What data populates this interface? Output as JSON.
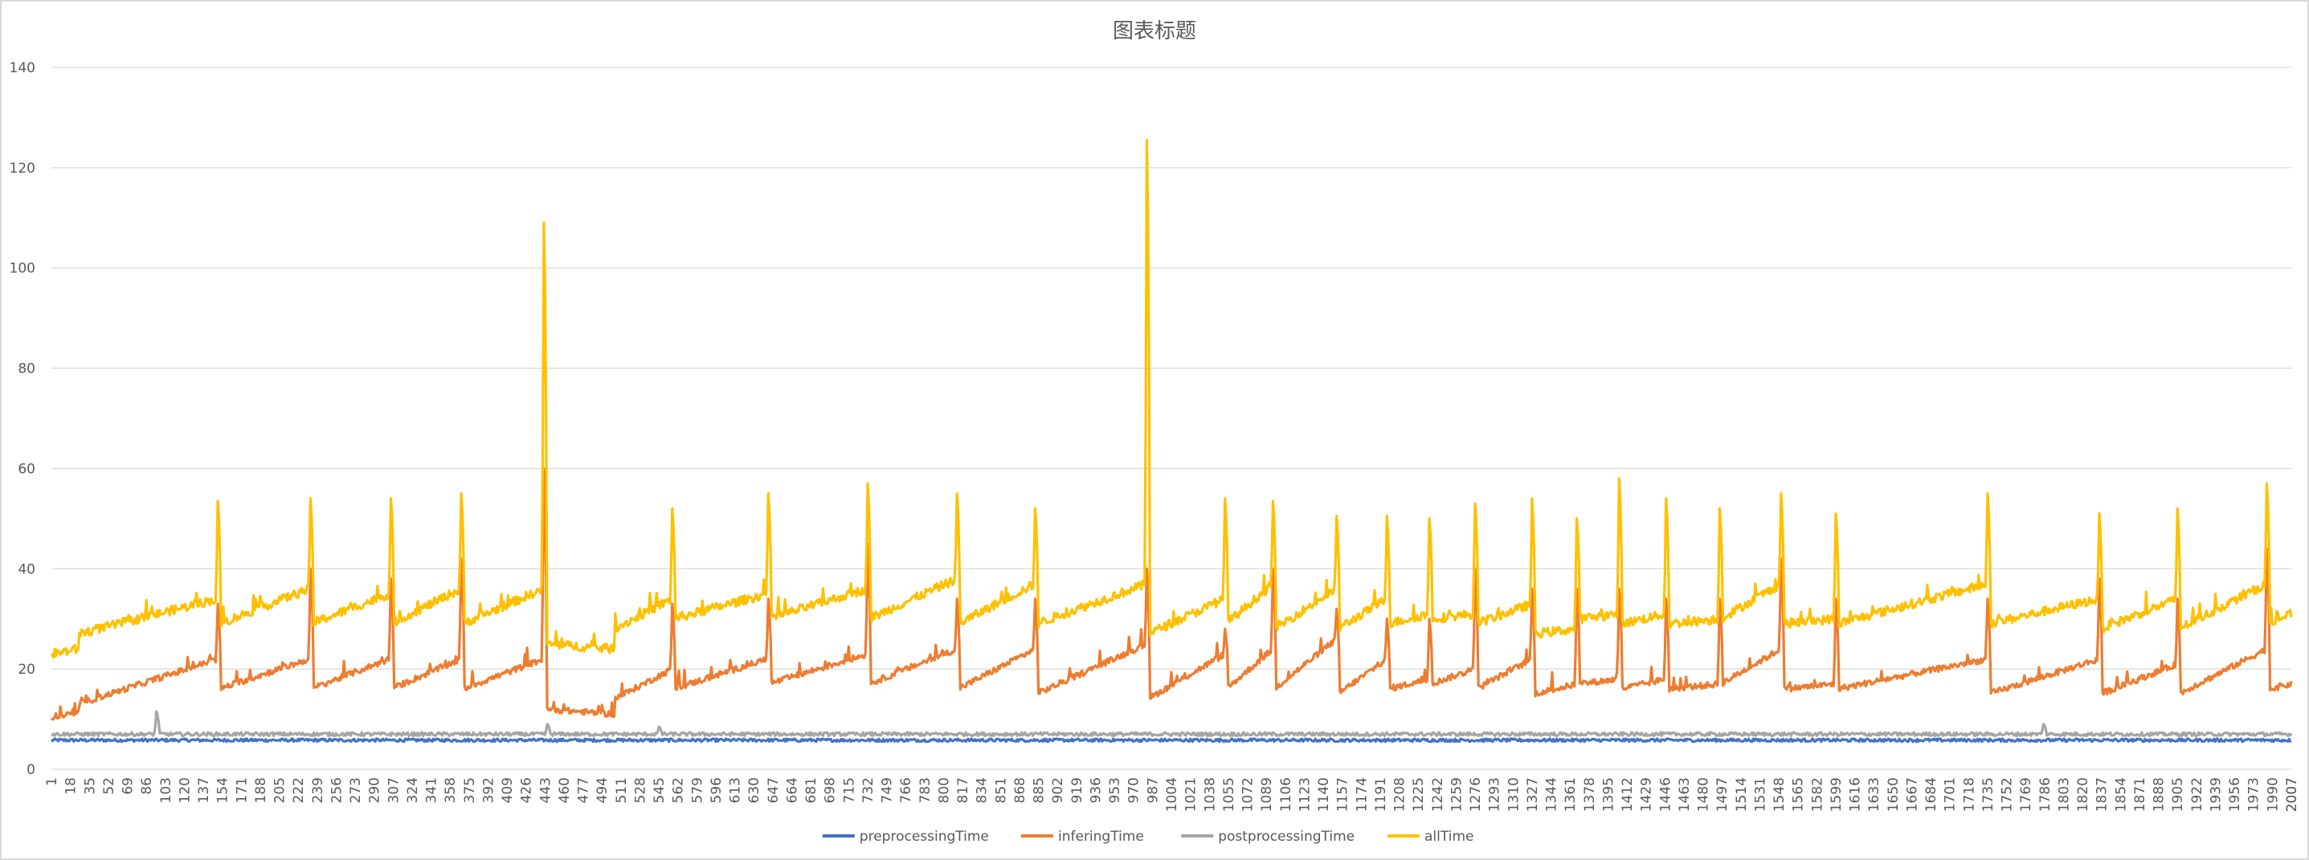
{
  "chart_data": {
    "type": "line",
    "title": "图表标题",
    "xlabel": "",
    "ylabel": "",
    "ylim": [
      0,
      140
    ],
    "yticks": [
      0,
      20,
      40,
      60,
      80,
      100,
      120,
      140
    ],
    "x_range": [
      1,
      2007
    ],
    "x_tick_step": 17,
    "grid": true,
    "legend_position": "bottom",
    "colors": {
      "preprocessingTime": "#4472c4",
      "inferingTime": "#ed7d31",
      "postprocessingTime": "#a5a5a5",
      "allTime": "#ffc000",
      "grid": "#d9d9d9",
      "axis_text": "#595959"
    },
    "series": [
      {
        "name": "preprocessingTime",
        "baseline": 5.8,
        "noise": 0.3
      },
      {
        "name": "postprocessingTime",
        "baseline": 7.0,
        "noise": 0.35,
        "spikes": [
          [
            95,
            11.5
          ],
          [
            445,
            9
          ],
          [
            545,
            8.5
          ],
          [
            1785,
            9
          ]
        ]
      },
      {
        "name": "inferingTime",
        "segments": [
          {
            "x0": 1,
            "x1": 25,
            "v0": 10.5,
            "v1": 11
          },
          {
            "x0": 25,
            "x1": 150,
            "v0": 13,
            "v1": 22
          },
          {
            "x0": 151,
            "x1": 232,
            "v0": 16,
            "v1": 22
          },
          {
            "x0": 233,
            "x1": 304,
            "v0": 16,
            "v1": 22
          },
          {
            "x0": 305,
            "x1": 368,
            "v0": 16,
            "v1": 22
          },
          {
            "x0": 369,
            "x1": 442,
            "v0": 16,
            "v1": 22
          },
          {
            "x0": 443,
            "x1": 505,
            "v0": 12,
            "v1": 11
          },
          {
            "x0": 505,
            "x1": 557,
            "v0": 14,
            "v1": 20
          },
          {
            "x0": 558,
            "x1": 642,
            "v0": 16,
            "v1": 22
          },
          {
            "x0": 643,
            "x1": 732,
            "v0": 17,
            "v1": 23
          },
          {
            "x0": 733,
            "x1": 812,
            "v0": 17,
            "v1": 24
          },
          {
            "x0": 813,
            "x1": 882,
            "v0": 16,
            "v1": 24
          },
          {
            "x0": 883,
            "x1": 982,
            "v0": 15,
            "v1": 25
          },
          {
            "x0": 983,
            "x1": 1052,
            "v0": 14,
            "v1": 23
          },
          {
            "x0": 1053,
            "x1": 1095,
            "v0": 16,
            "v1": 24
          },
          {
            "x0": 1096,
            "x1": 1152,
            "v0": 16,
            "v1": 26
          },
          {
            "x0": 1153,
            "x1": 1197,
            "v0": 15,
            "v1": 22
          },
          {
            "x0": 1198,
            "x1": 1235,
            "v0": 16,
            "v1": 18
          },
          {
            "x0": 1236,
            "x1": 1276,
            "v0": 17,
            "v1": 20
          },
          {
            "x0": 1277,
            "x1": 1327,
            "v0": 16,
            "v1": 22
          },
          {
            "x0": 1328,
            "x1": 1367,
            "v0": 15,
            "v1": 17
          },
          {
            "x0": 1368,
            "x1": 1405,
            "v0": 17,
            "v1": 18
          },
          {
            "x0": 1406,
            "x1": 1447,
            "v0": 16,
            "v1": 18
          },
          {
            "x0": 1448,
            "x1": 1495,
            "v0": 16,
            "v1": 17
          },
          {
            "x0": 1496,
            "x1": 1550,
            "v0": 17,
            "v1": 24
          },
          {
            "x0": 1551,
            "x1": 1599,
            "v0": 16,
            "v1": 17
          },
          {
            "x0": 1600,
            "x1": 1735,
            "v0": 16,
            "v1": 22
          },
          {
            "x0": 1736,
            "x1": 1835,
            "v0": 15,
            "v1": 22
          },
          {
            "x0": 1836,
            "x1": 1905,
            "v0": 15,
            "v1": 21
          },
          {
            "x0": 1906,
            "x1": 1985,
            "v0": 15,
            "v1": 24
          },
          {
            "x0": 1986,
            "x1": 2007,
            "v0": 16,
            "v1": 17
          }
        ],
        "spikes": [
          [
            150,
            33
          ],
          [
            233,
            40
          ],
          [
            305,
            38
          ],
          [
            368,
            42
          ],
          [
            442,
            60
          ],
          [
            557,
            33
          ],
          [
            643,
            34
          ],
          [
            732,
            45
          ],
          [
            812,
            34
          ],
          [
            882,
            34
          ],
          [
            982,
            40
          ],
          [
            1052,
            28
          ],
          [
            1095,
            40
          ],
          [
            1152,
            32
          ],
          [
            1197,
            30
          ],
          [
            1235,
            30
          ],
          [
            1276,
            40
          ],
          [
            1327,
            36
          ],
          [
            1367,
            36
          ],
          [
            1405,
            36
          ],
          [
            1447,
            34
          ],
          [
            1495,
            34
          ],
          [
            1550,
            42
          ],
          [
            1599,
            34
          ],
          [
            1735,
            34
          ],
          [
            1835,
            38
          ],
          [
            1905,
            34
          ],
          [
            1985,
            44
          ]
        ],
        "noise": 0.6
      },
      {
        "name": "allTime",
        "segments": [
          {
            "x0": 1,
            "x1": 25,
            "v0": 23,
            "v1": 24
          },
          {
            "x0": 25,
            "x1": 150,
            "v0": 27,
            "v1": 34
          },
          {
            "x0": 151,
            "x1": 232,
            "v0": 29,
            "v1": 36
          },
          {
            "x0": 233,
            "x1": 304,
            "v0": 29,
            "v1": 35
          },
          {
            "x0": 305,
            "x1": 368,
            "v0": 29,
            "v1": 36
          },
          {
            "x0": 369,
            "x1": 442,
            "v0": 29,
            "v1": 36
          },
          {
            "x0": 443,
            "x1": 505,
            "v0": 25,
            "v1": 24
          },
          {
            "x0": 505,
            "x1": 557,
            "v0": 28,
            "v1": 34
          },
          {
            "x0": 558,
            "x1": 642,
            "v0": 30,
            "v1": 35
          },
          {
            "x0": 643,
            "x1": 732,
            "v0": 30,
            "v1": 36
          },
          {
            "x0": 733,
            "x1": 812,
            "v0": 30,
            "v1": 38
          },
          {
            "x0": 813,
            "x1": 882,
            "v0": 29,
            "v1": 37
          },
          {
            "x0": 883,
            "x1": 982,
            "v0": 29,
            "v1": 37
          },
          {
            "x0": 983,
            "x1": 1052,
            "v0": 27,
            "v1": 34
          },
          {
            "x0": 1053,
            "x1": 1095,
            "v0": 29,
            "v1": 37
          },
          {
            "x0": 1096,
            "x1": 1152,
            "v0": 28,
            "v1": 36
          },
          {
            "x0": 1153,
            "x1": 1197,
            "v0": 28,
            "v1": 34
          },
          {
            "x0": 1198,
            "x1": 1235,
            "v0": 29,
            "v1": 31
          },
          {
            "x0": 1236,
            "x1": 1276,
            "v0": 30,
            "v1": 31
          },
          {
            "x0": 1277,
            "x1": 1327,
            "v0": 29,
            "v1": 33
          },
          {
            "x0": 1328,
            "x1": 1367,
            "v0": 27,
            "v1": 28
          },
          {
            "x0": 1368,
            "x1": 1405,
            "v0": 30,
            "v1": 31
          },
          {
            "x0": 1406,
            "x1": 1447,
            "v0": 29,
            "v1": 31
          },
          {
            "x0": 1448,
            "x1": 1495,
            "v0": 29,
            "v1": 30
          },
          {
            "x0": 1496,
            "x1": 1550,
            "v0": 30,
            "v1": 37
          },
          {
            "x0": 1551,
            "x1": 1599,
            "v0": 29,
            "v1": 30
          },
          {
            "x0": 1600,
            "x1": 1735,
            "v0": 29,
            "v1": 37
          },
          {
            "x0": 1736,
            "x1": 1835,
            "v0": 29,
            "v1": 34
          },
          {
            "x0": 1836,
            "x1": 1905,
            "v0": 28,
            "v1": 34
          },
          {
            "x0": 1906,
            "x1": 1985,
            "v0": 28,
            "v1": 37
          },
          {
            "x0": 1986,
            "x1": 2007,
            "v0": 29,
            "v1": 31
          }
        ],
        "spikes": [
          [
            150,
            53.5
          ],
          [
            233,
            54
          ],
          [
            305,
            54
          ],
          [
            368,
            55
          ],
          [
            442,
            109
          ],
          [
            557,
            52
          ],
          [
            643,
            55
          ],
          [
            732,
            57
          ],
          [
            812,
            55
          ],
          [
            882,
            52
          ],
          [
            982,
            125.5
          ],
          [
            1052,
            54
          ],
          [
            1095,
            53.5
          ],
          [
            1152,
            50.5
          ],
          [
            1197,
            50.5
          ],
          [
            1235,
            50
          ],
          [
            1276,
            53
          ],
          [
            1327,
            54
          ],
          [
            1367,
            50
          ],
          [
            1405,
            58
          ],
          [
            1447,
            54
          ],
          [
            1495,
            52
          ],
          [
            1550,
            55
          ],
          [
            1599,
            51
          ],
          [
            1735,
            55
          ],
          [
            1835,
            51
          ],
          [
            1905,
            52
          ],
          [
            1985,
            57
          ]
        ],
        "noise": 0.9
      }
    ],
    "legend": [
      "preprocessingTime",
      "inferingTime",
      "postprocessingTime",
      "allTime"
    ]
  }
}
